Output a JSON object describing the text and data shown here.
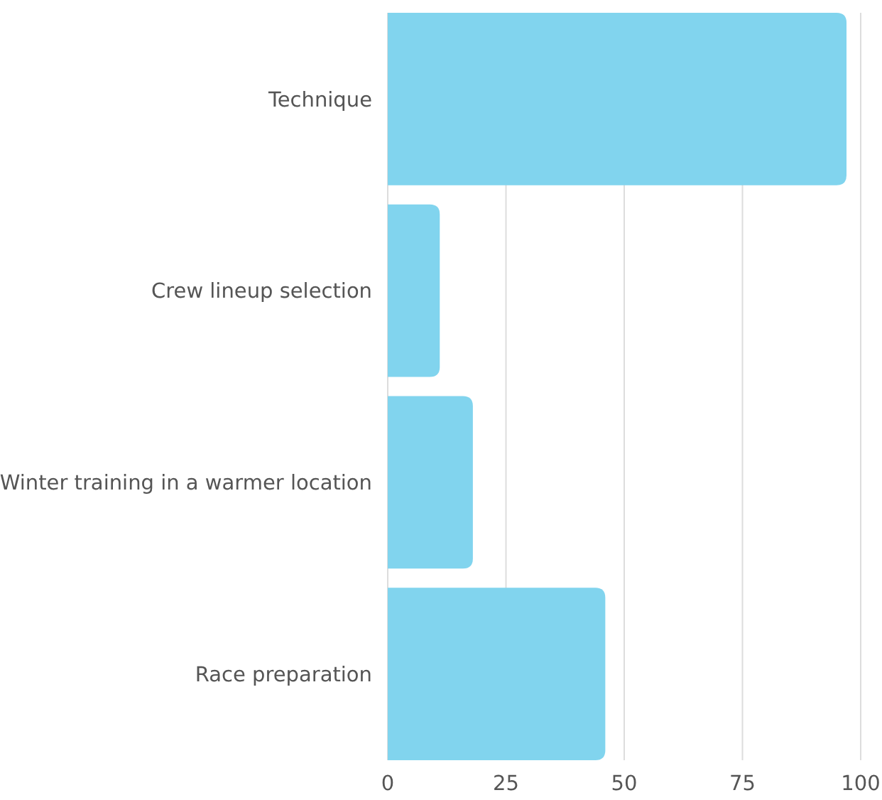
{
  "chart_data": {
    "type": "bar",
    "orientation": "horizontal",
    "categories": [
      "Technique",
      "Crew lineup selection",
      "Winter training in a warmer location",
      "Race preparation"
    ],
    "values": [
      97,
      11,
      18,
      46
    ],
    "color": "#81d4ee",
    "xlim": [
      0,
      100
    ],
    "xticks": [
      0,
      25,
      50,
      75,
      100
    ],
    "grid": "x"
  }
}
